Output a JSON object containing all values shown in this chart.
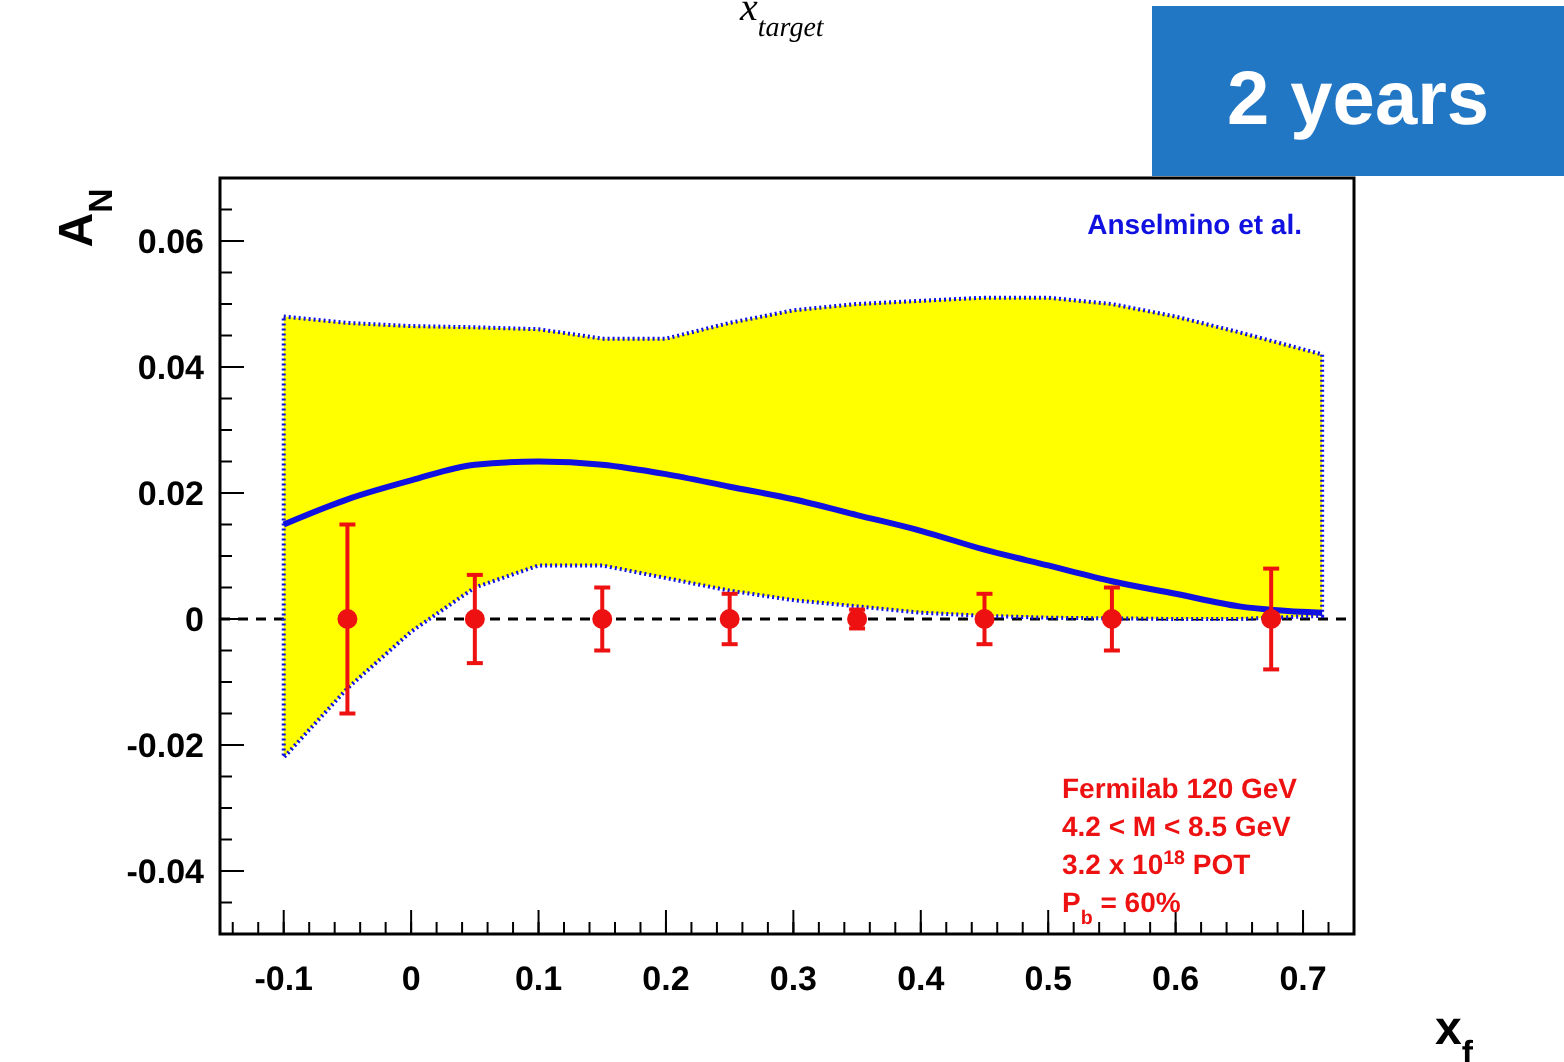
{
  "chart_data": {
    "type": "line",
    "xlabel": "x$_{f}$",
    "ylabel": "A$_{N}$",
    "xlim": [
      -0.15,
      0.74
    ],
    "xticks": [
      -0.1,
      0,
      0.1,
      0.2,
      0.3,
      0.4,
      0.5,
      0.6,
      0.7
    ],
    "ylim": [
      -0.05,
      0.07
    ],
    "yticks": [
      -0.04,
      -0.02,
      0,
      0.02,
      0.04,
      0.06
    ],
    "grid": false,
    "legend": "top right",
    "series": [
      {
        "name": "Anselmino et al.",
        "color": "#1010e0",
        "x": [
          -0.1,
          -0.05,
          0,
          0.05,
          0.1,
          0.15,
          0.2,
          0.25,
          0.3,
          0.35,
          0.4,
          0.45,
          0.5,
          0.55,
          0.6,
          0.65,
          0.715
        ],
        "values": [
          0.015,
          0.019,
          0.022,
          0.0245,
          0.025,
          0.0245,
          0.023,
          0.021,
          0.019,
          0.0165,
          0.014,
          0.011,
          0.0085,
          0.006,
          0.004,
          0.002,
          0.001
        ],
        "lower": [
          -0.022,
          -0.011,
          -0.002,
          0.005,
          0.0085,
          0.0085,
          0.0065,
          0.0045,
          0.003,
          0.002,
          0.001,
          0.0005,
          0.0002,
          0.0001,
          0,
          0,
          0.0005
        ],
        "upper": [
          0.048,
          0.047,
          0.0465,
          0.0463,
          0.046,
          0.0445,
          0.0445,
          0.047,
          0.049,
          0.05,
          0.0505,
          0.051,
          0.051,
          0.05,
          0.048,
          0.0455,
          0.042
        ]
      },
      {
        "type": "scatter",
        "color": "#ee1111",
        "marker": "circle",
        "x": [
          -0.05,
          0.05,
          0.15,
          0.25,
          0.35,
          0.45,
          0.55,
          0.675
        ],
        "values": [
          0,
          0,
          0,
          0,
          0,
          0,
          0,
          0
        ],
        "errors": [
          0.015,
          0.007,
          0.005,
          0.004,
          0.0015,
          0.004,
          0.005,
          0.008
        ]
      }
    ],
    "ref_lines": [
      {
        "axis": "y",
        "value": 0,
        "line_style": "dashed",
        "color": "#000000"
      }
    ],
    "annotations": [
      "Fermilab 120 GeV",
      "4.2 < M < 8.5 GeV",
      "3.2 x 10$^{18}$ POT",
      "P$_{b}$ = 60%",
      "2 years",
      "x$_{target}$"
    ]
  }
}
